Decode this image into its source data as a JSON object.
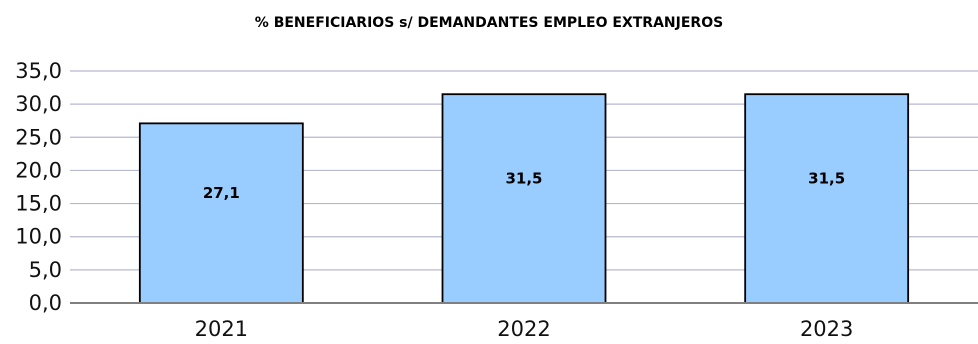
{
  "chart_data": {
    "type": "bar",
    "title": "% BENEFICIARIOS s/ DEMANDANTES EMPLEO EXTRANJEROS",
    "xlabel": "",
    "ylabel": "",
    "categories": [
      "2021",
      "2022",
      "2023"
    ],
    "values": [
      27.1,
      31.5,
      31.5
    ],
    "data_labels": [
      "27,1",
      "31,5",
      "31,5"
    ],
    "ylim": [
      0,
      35
    ],
    "yticks": [
      0,
      5,
      10,
      15,
      20,
      25,
      30,
      35
    ],
    "ytick_labels": [
      "0,0",
      "5,0",
      "10,0",
      "15,0",
      "20,0",
      "25,0",
      "30,0",
      "35,0"
    ],
    "grid": true,
    "legend": "none",
    "colors": {
      "bar_fill": "#99ccff",
      "bar_stroke": "#000000",
      "grid": "#b8b8d0",
      "axis": "#808080"
    }
  }
}
